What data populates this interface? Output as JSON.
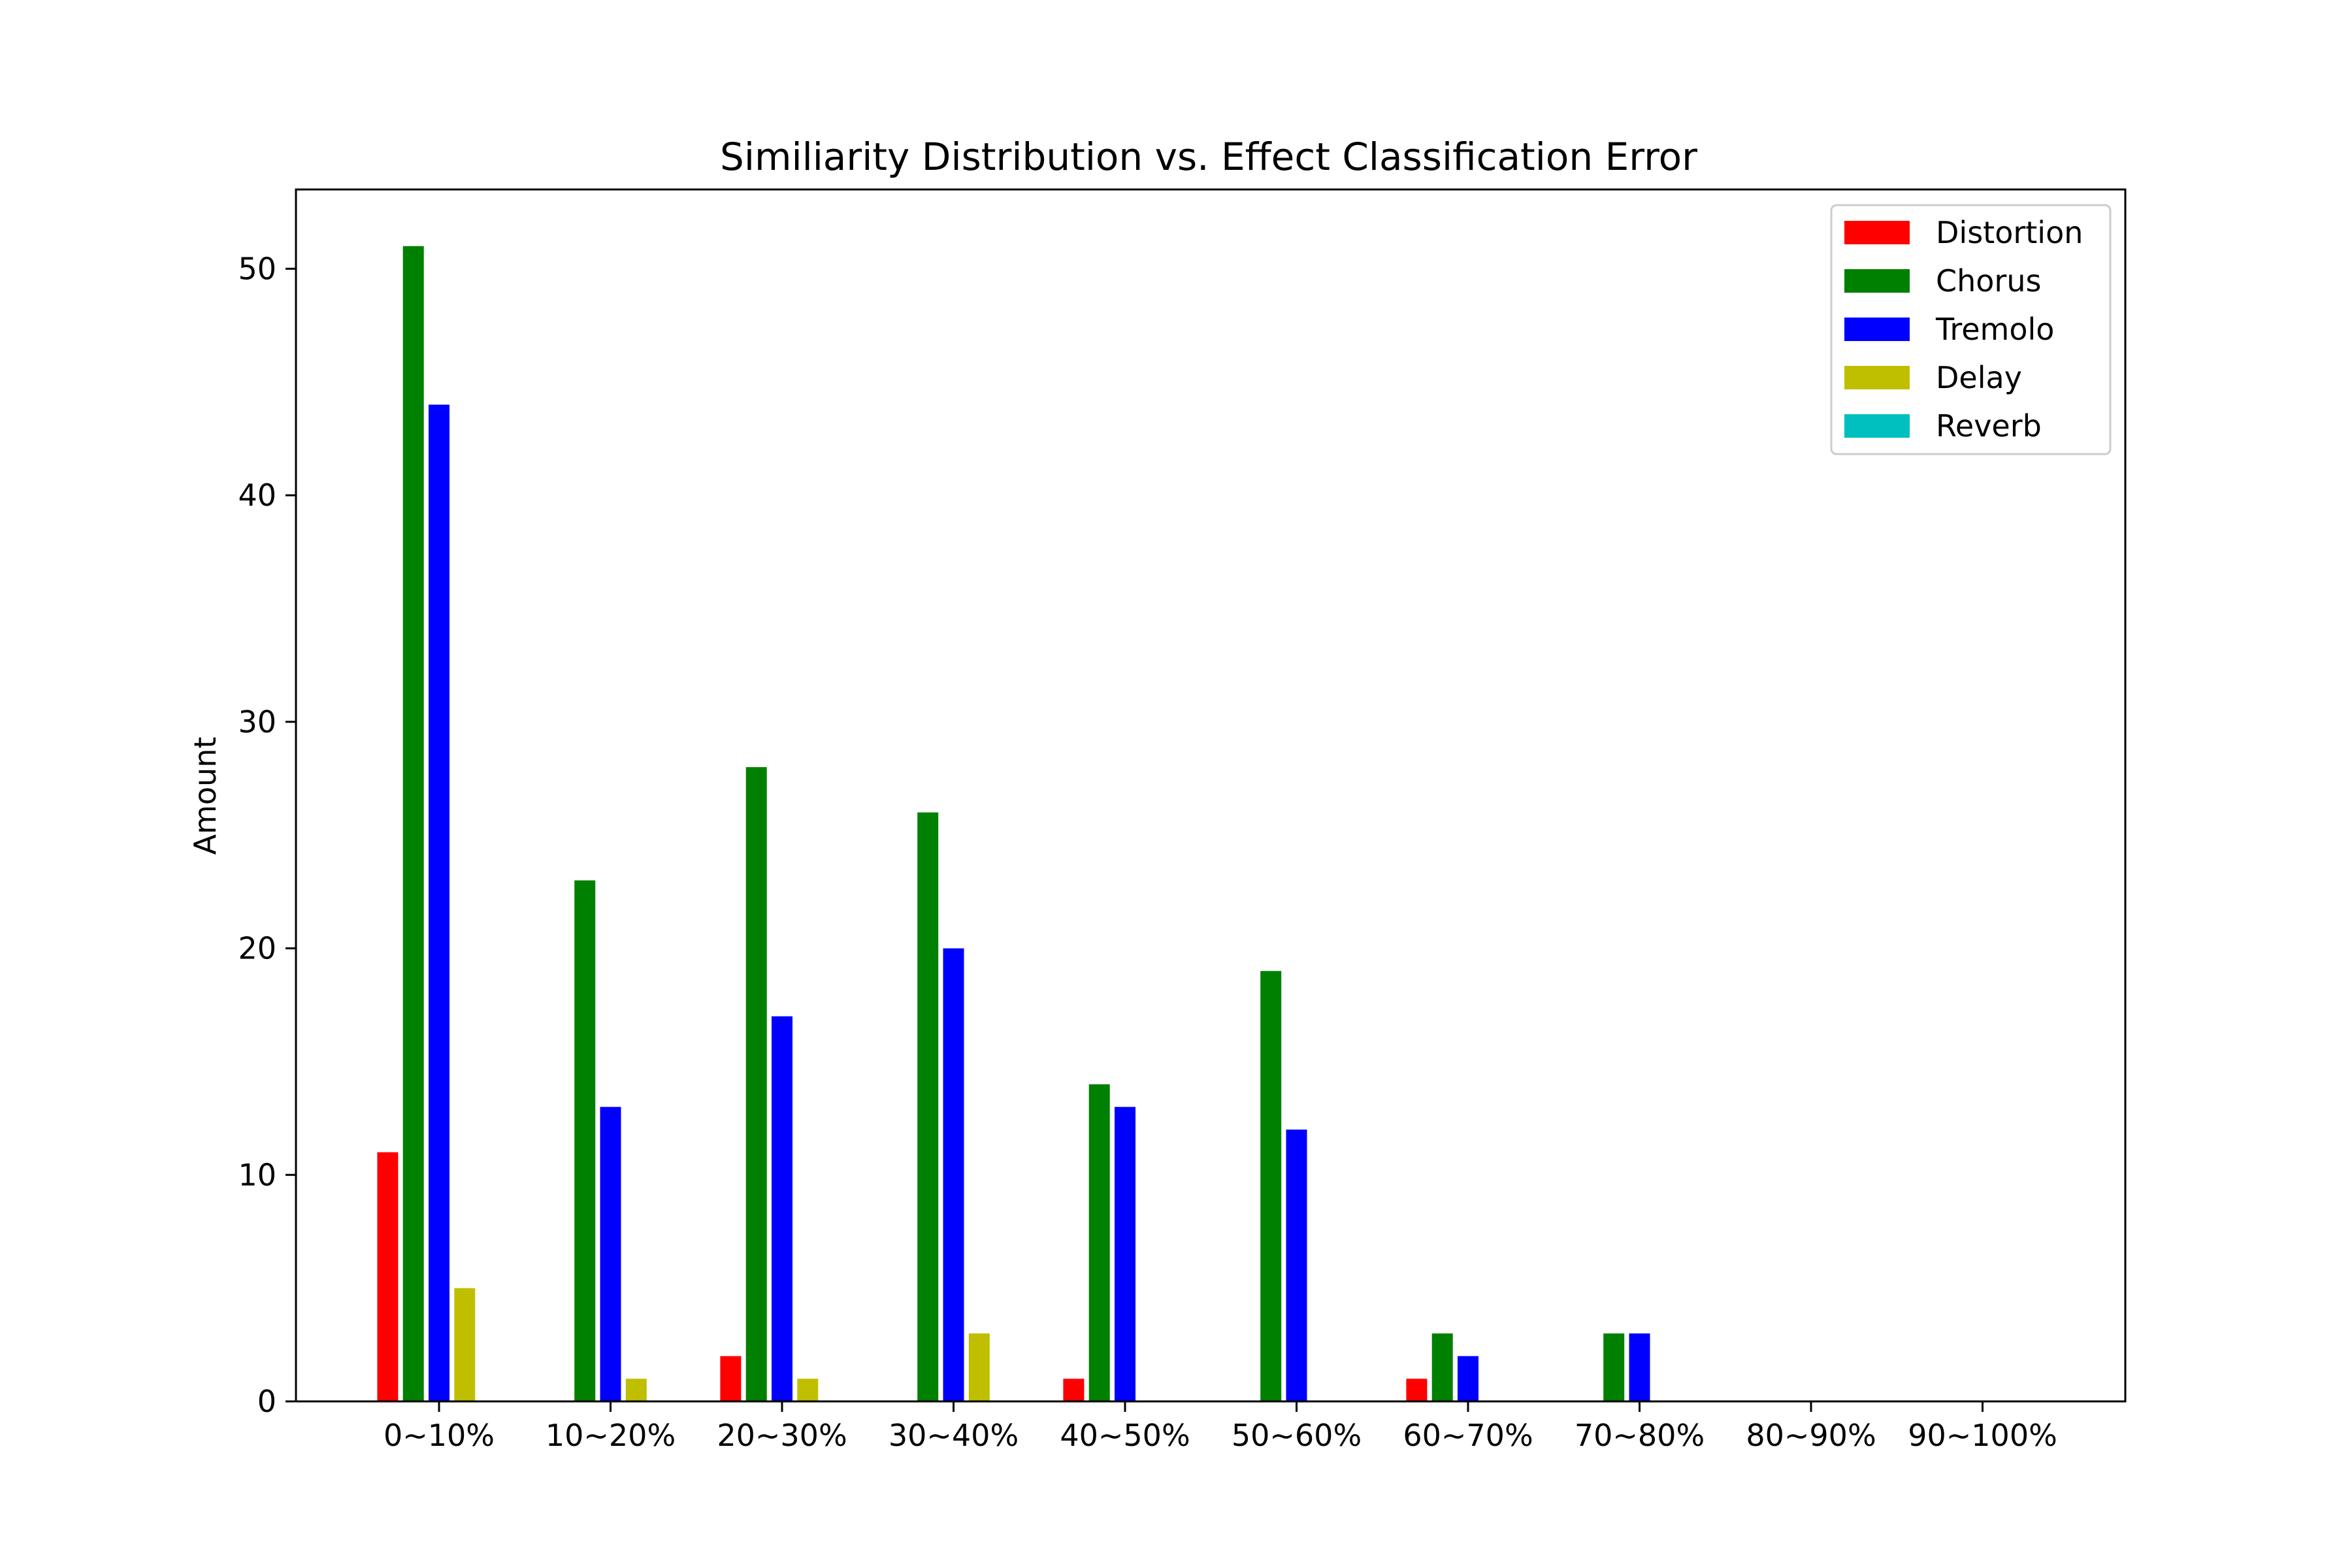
{
  "chart_data": {
    "type": "bar",
    "title": "Similiarity Distribution vs. Effect Classification Error",
    "xlabel": "",
    "ylabel": "Amount",
    "categories": [
      "0~10%",
      "10~20%",
      "20~30%",
      "30~40%",
      "40~50%",
      "50~60%",
      "60~70%",
      "70~80%",
      "80~90%",
      "90~100%"
    ],
    "ylim": [
      0,
      53.5
    ],
    "yticks": [
      0,
      10,
      20,
      30,
      40,
      50
    ],
    "grid": false,
    "legend_position": "top-right",
    "series": [
      {
        "name": "Distortion",
        "color": "#ff0000",
        "values": [
          11,
          0,
          2,
          0,
          1,
          0,
          1,
          0,
          0,
          0
        ]
      },
      {
        "name": "Chorus",
        "color": "#008000",
        "values": [
          51,
          23,
          28,
          26,
          14,
          19,
          3,
          3,
          0,
          0
        ]
      },
      {
        "name": "Tremolo",
        "color": "#0000ff",
        "values": [
          44,
          13,
          17,
          20,
          13,
          12,
          2,
          3,
          0,
          0
        ]
      },
      {
        "name": "Delay",
        "color": "#bfbf00",
        "values": [
          5,
          1,
          1,
          3,
          0,
          0,
          0,
          0,
          0,
          0
        ]
      },
      {
        "name": "Reverb",
        "color": "#00bfbf",
        "values": [
          0,
          0,
          0,
          0,
          0,
          0,
          0,
          0,
          0,
          0
        ]
      }
    ]
  }
}
